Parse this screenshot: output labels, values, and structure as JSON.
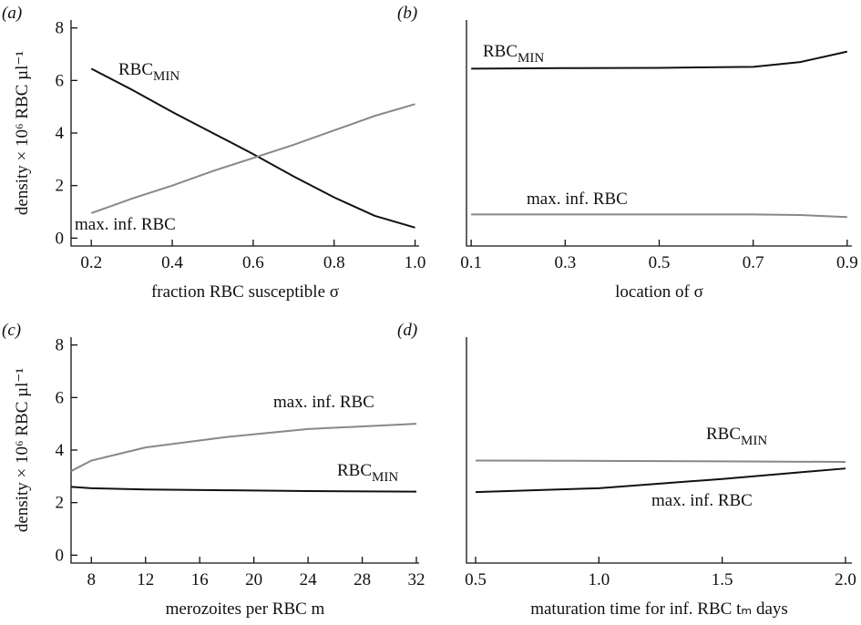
{
  "chart_data": [
    {
      "type": "line",
      "panel_label": "(a)",
      "xlabel": "fraction RBC susceptible σ",
      "ylabel": "density × 10⁶ RBC µl⁻¹",
      "x": [
        0.2,
        0.3,
        0.4,
        0.5,
        0.6,
        0.7,
        0.8,
        0.9,
        1.0
      ],
      "series": [
        {
          "name": "RBC",
          "name_subscript": "MIN",
          "color": "#111111",
          "values": [
            6.45,
            5.65,
            4.8,
            4.0,
            3.2,
            2.35,
            1.55,
            0.85,
            0.4
          ]
        },
        {
          "name": "max. inf. RBC",
          "color": "#888888",
          "values": [
            0.95,
            1.5,
            2.0,
            2.55,
            3.05,
            3.55,
            4.1,
            4.65,
            5.1
          ]
        }
      ],
      "xlim": [
        0.15,
        1.01
      ],
      "xticks": [
        0.2,
        0.4,
        0.6,
        0.8,
        {
          "value": 1,
          "label": "1.0"
        }
      ],
      "ylim": [
        -0.3,
        8.3
      ],
      "yticks": [
        0,
        2,
        4,
        6,
        8
      ]
    },
    {
      "type": "line",
      "panel_label": "(b)",
      "xlabel": "location of σ",
      "x": [
        0.1,
        0.3,
        0.5,
        0.7,
        0.8,
        0.9
      ],
      "series": [
        {
          "name": "RBC",
          "name_subscript": "MIN",
          "color": "#111111",
          "values": [
            6.45,
            6.47,
            6.48,
            6.52,
            6.7,
            7.1
          ]
        },
        {
          "name": "max. inf. RBC",
          "color": "#888888",
          "values": [
            0.9,
            0.9,
            0.9,
            0.9,
            0.88,
            0.8
          ]
        }
      ],
      "xlim": [
        0.09,
        0.91
      ],
      "xticks": [
        0.1,
        0.3,
        0.5,
        0.7,
        0.9
      ],
      "ylim": [
        -0.3,
        8.3
      ]
    },
    {
      "type": "line",
      "panel_label": "(c)",
      "xlabel": "merozoites per RBC m",
      "ylabel": "density × 10⁶ RBC µl⁻¹",
      "x": [
        6.5,
        8,
        12,
        18,
        24,
        32
      ],
      "series": [
        {
          "name": "max. inf. RBC",
          "color": "#888888",
          "values": [
            3.2,
            3.6,
            4.1,
            4.5,
            4.8,
            5.0
          ]
        },
        {
          "name": "RBC",
          "name_subscript": "MIN",
          "color": "#111111",
          "values": [
            2.6,
            2.55,
            2.5,
            2.47,
            2.44,
            2.42
          ]
        }
      ],
      "xlim": [
        6.5,
        32.2
      ],
      "xticks": [
        8,
        12,
        16,
        20,
        24,
        28,
        32
      ],
      "ylim": [
        -0.3,
        8.3
      ],
      "yticks": [
        0,
        2,
        4,
        6,
        8
      ]
    },
    {
      "type": "line",
      "panel_label": "(d)",
      "xlabel": "maturation time for inf. RBC tₘ days",
      "x": [
        0.5,
        1.0,
        1.5,
        2.0
      ],
      "series": [
        {
          "name": "RBC",
          "name_subscript": "MIN",
          "color": "#888888",
          "values": [
            3.6,
            3.59,
            3.57,
            3.55
          ]
        },
        {
          "name": "max. inf. RBC",
          "color": "#111111",
          "values": [
            2.4,
            2.55,
            2.9,
            3.3
          ]
        }
      ],
      "xlim": [
        0.463,
        2.026
      ],
      "xticks": [
        0.5,
        {
          "value": 1,
          "label": "1.0"
        },
        1.5,
        {
          "value": 2,
          "label": "2.0"
        }
      ],
      "ylim": [
        -0.3,
        8.3
      ]
    }
  ]
}
